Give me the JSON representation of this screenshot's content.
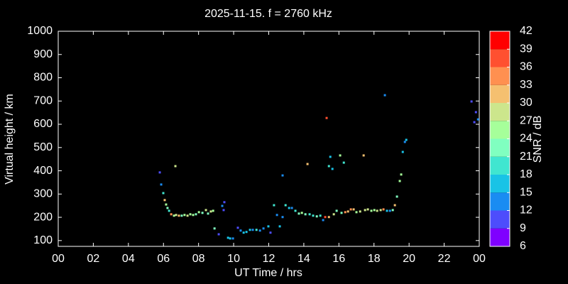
{
  "chart_data": {
    "type": "scatter",
    "title": "2025-11-15. f = 2760 kHz",
    "xlabel": "UT Time / hrs",
    "ylabel": "Virtual height / km",
    "xlim": [
      0,
      24
    ],
    "xticks": [
      {
        "value": 0,
        "label": "00"
      },
      {
        "value": 2,
        "label": "02"
      },
      {
        "value": 4,
        "label": "04"
      },
      {
        "value": 6,
        "label": "06"
      },
      {
        "value": 8,
        "label": "08"
      },
      10,
      12,
      14,
      16,
      18,
      20,
      22,
      {
        "value": 24,
        "label": "00"
      }
    ],
    "ylim": [
      75,
      1000
    ],
    "yticks": [
      100,
      200,
      300,
      400,
      500,
      600,
      700,
      800,
      900,
      1000
    ],
    "colorbar": {
      "label": "SNR / dB",
      "lim": [
        6,
        42
      ],
      "ticks": [
        6,
        9,
        12,
        15,
        18,
        21,
        24,
        27,
        30,
        33,
        36,
        39,
        42
      ],
      "colors": [
        "#7f00ff",
        "#4d4dfc",
        "#1a8cf2",
        "#19c3e6",
        "#40e6d0",
        "#80ffc0",
        "#a6ff9a",
        "#cce68c",
        "#f5c070",
        "#ff9050",
        "#ff5030",
        "#ff0000"
      ]
    },
    "x": [
      5.79,
      5.87,
      5.99,
      6.07,
      6.15,
      6.23,
      6.32,
      6.44,
      6.6,
      6.72,
      6.68,
      6.88,
      7.04,
      7.2,
      7.37,
      7.53,
      7.69,
      7.85,
      8.02,
      8.22,
      8.42,
      8.54,
      8.7,
      8.83,
      8.91,
      9.15,
      9.35,
      9.43,
      9.47,
      9.68,
      9.8,
      9.96,
      10.24,
      10.4,
      10.57,
      10.73,
      10.93,
      11.09,
      11.3,
      11.5,
      11.7,
      11.98,
      12.1,
      12.3,
      12.47,
      12.63,
      12.79,
      12.79,
      12.96,
      13.16,
      13.32,
      13.52,
      13.72,
      13.89,
      14.09,
      14.21,
      14.33,
      14.53,
      14.74,
      14.94,
      15.1,
      15.22,
      15.3,
      15.43,
      15.43,
      15.51,
      15.63,
      15.71,
      15.87,
      16.07,
      16.15,
      16.28,
      16.36,
      16.52,
      16.68,
      16.84,
      17.0,
      17.21,
      17.41,
      17.49,
      17.65,
      17.85,
      18.02,
      18.18,
      18.38,
      18.54,
      18.62,
      18.74,
      18.91,
      19.07,
      19.19,
      19.31,
      19.47,
      19.55,
      19.64,
      19.76,
      19.84,
      23.56,
      23.81,
      23.72,
      23.93
    ],
    "y": [
      393,
      341,
      304,
      274,
      255,
      240,
      228,
      213,
      207,
      210,
      420,
      207,
      207,
      210,
      207,
      213,
      210,
      213,
      222,
      219,
      231,
      216,
      225,
      228,
      152,
      127,
      249,
      231,
      265,
      112,
      109,
      109,
      155,
      143,
      134,
      137,
      146,
      146,
      146,
      143,
      152,
      161,
      134,
      252,
      210,
      161,
      201,
      380,
      252,
      240,
      240,
      228,
      216,
      219,
      213,
      429,
      213,
      207,
      204,
      207,
      188,
      201,
      627,
      201,
      420,
      460,
      408,
      213,
      228,
      466,
      219,
      435,
      222,
      225,
      234,
      234,
      222,
      225,
      466,
      231,
      234,
      228,
      231,
      228,
      231,
      234,
      725,
      228,
      228,
      231,
      252,
      289,
      356,
      384,
      481,
      524,
      533,
      698,
      652,
      609,
      621
    ],
    "snr": [
      10,
      12,
      20,
      30,
      25,
      22,
      20,
      34,
      25,
      28,
      28,
      30,
      22,
      26,
      28,
      24,
      26,
      22,
      25,
      21,
      29,
      22,
      27,
      25,
      22,
      11,
      12,
      10,
      10,
      17,
      15,
      13,
      10,
      14,
      15,
      16,
      17,
      13,
      18,
      14,
      12,
      17,
      10,
      20,
      12,
      15,
      13,
      14,
      18,
      16,
      14,
      20,
      23,
      25,
      22,
      31,
      20,
      19,
      22,
      18,
      14,
      37,
      37,
      30,
      20,
      16,
      17,
      27,
      22,
      24,
      23,
      20,
      33,
      30,
      34,
      32,
      25,
      28,
      31,
      29,
      27,
      26,
      24,
      27,
      29,
      33,
      14,
      16,
      14,
      22,
      30,
      21,
      24,
      26,
      16,
      14,
      15,
      11,
      11,
      10,
      12
    ]
  }
}
